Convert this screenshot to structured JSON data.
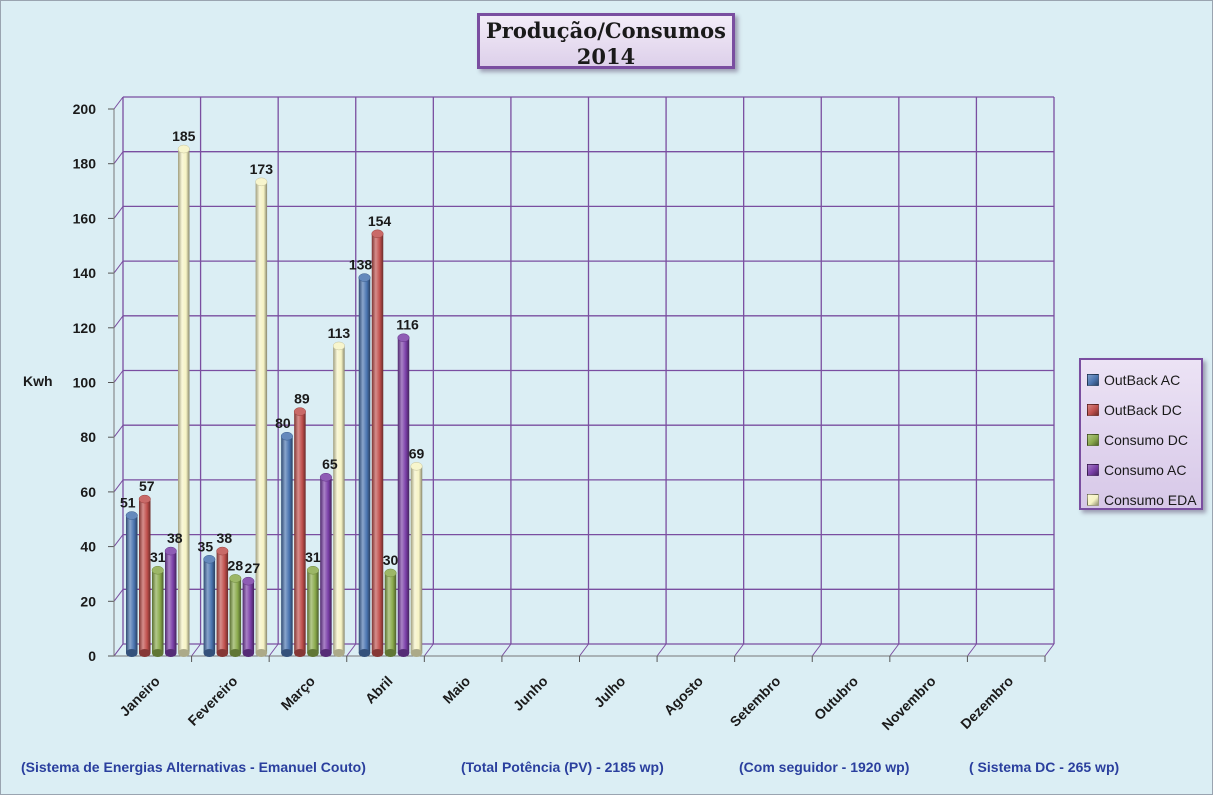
{
  "chart_data": {
    "type": "bar",
    "title": "Produção/Consumos",
    "subtitle": "2014",
    "ylabel": "Kwh",
    "xlabel": "",
    "ylim": [
      0,
      200
    ],
    "ytick_step": 20,
    "grid": true,
    "legend_position": "right",
    "categories": [
      "Janeiro",
      "Fevereiro",
      "Março",
      "Abril",
      "Maio",
      "Junho",
      "Julho",
      "Agosto",
      "Setembro",
      "Outubro",
      "Novembro",
      "Dezembro"
    ],
    "series": [
      {
        "name": "OutBack AC",
        "color": "#4a74b0",
        "values": [
          51,
          35,
          80,
          138,
          null,
          null,
          null,
          null,
          null,
          null,
          null,
          null
        ]
      },
      {
        "name": "OutBack DC",
        "color": "#c0504d",
        "values": [
          57,
          38,
          89,
          154,
          null,
          null,
          null,
          null,
          null,
          null,
          null,
          null
        ]
      },
      {
        "name": "Consumo DC",
        "color": "#8aaa4c",
        "values": [
          31,
          28,
          31,
          30,
          null,
          null,
          null,
          null,
          null,
          null,
          null,
          null
        ]
      },
      {
        "name": "Consumo AC",
        "color": "#7a3fa8",
        "values": [
          38,
          27,
          65,
          116,
          null,
          null,
          null,
          null,
          null,
          null,
          null,
          null
        ]
      },
      {
        "name": "Consumo EDA",
        "color": "#f6f3c4",
        "values": [
          185,
          173,
          113,
          69,
          null,
          null,
          null,
          null,
          null,
          null,
          null,
          null
        ]
      }
    ]
  },
  "footer": {
    "system": "(Sistema de Energias Alternativas - Emanuel Couto)",
    "total_power": "(Total Potência (PV) - 2185 wp)",
    "tracker": "(Com seguidor - 1920 wp)",
    "dc_system": "( Sistema DC - 265 wp)"
  },
  "colors": {
    "background": "#dbeef4",
    "grid": "#7a4ea0",
    "footer_text": "#2a3f9e"
  }
}
